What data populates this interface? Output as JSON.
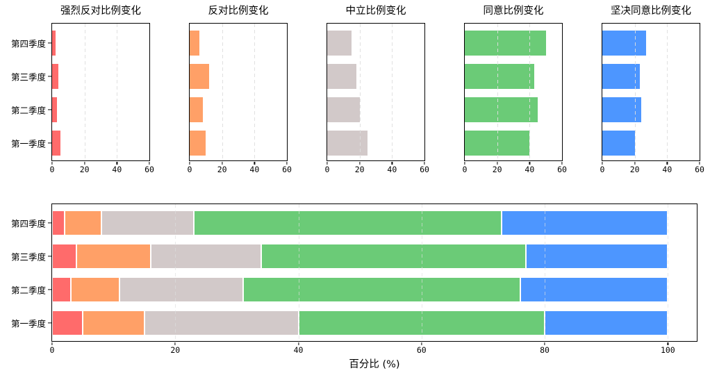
{
  "figure": {
    "background_color": "#ffffff",
    "axis_color": "#000000",
    "grid_style": "dashed vertical gridlines"
  },
  "categories": [
    "第一季度",
    "第二季度",
    "第三季度",
    "第四季度"
  ],
  "y_axis_order_top_to_bottom": [
    "第四季度",
    "第三季度",
    "第二季度",
    "第一季度"
  ],
  "chart_data": [
    {
      "type": "bar",
      "orientation": "horizontal",
      "title": "强烈反对比例变化",
      "series_name": "强烈反对",
      "categories": [
        "第一季度",
        "第二季度",
        "第三季度",
        "第四季度"
      ],
      "values": [
        5,
        3,
        4,
        2
      ],
      "color": "#FF6B6B",
      "xlim": [
        0,
        60
      ],
      "xticks": [
        0,
        20,
        40,
        60
      ],
      "y_labels_shown": true,
      "legend": "none"
    },
    {
      "type": "bar",
      "orientation": "horizontal",
      "title": "反对比例变化",
      "series_name": "反对",
      "categories": [
        "第一季度",
        "第二季度",
        "第三季度",
        "第四季度"
      ],
      "values": [
        10,
        8,
        12,
        6
      ],
      "color": "#FFA067",
      "xlim": [
        0,
        60
      ],
      "xticks": [
        0,
        20,
        40,
        60
      ],
      "y_labels_shown": false,
      "legend": "none"
    },
    {
      "type": "bar",
      "orientation": "horizontal",
      "title": "中立比例变化",
      "series_name": "中立",
      "categories": [
        "第一季度",
        "第二季度",
        "第三季度",
        "第四季度"
      ],
      "values": [
        25,
        20,
        18,
        15
      ],
      "color": "#D2C9C9",
      "xlim": [
        0,
        60
      ],
      "xticks": [
        0,
        20,
        40,
        60
      ],
      "y_labels_shown": false,
      "legend": "none"
    },
    {
      "type": "bar",
      "orientation": "horizontal",
      "title": "同意比例变化",
      "series_name": "同意",
      "categories": [
        "第一季度",
        "第二季度",
        "第三季度",
        "第四季度"
      ],
      "values": [
        40,
        45,
        43,
        50
      ],
      "color": "#6BCB77",
      "xlim": [
        0,
        60
      ],
      "xticks": [
        0,
        20,
        40,
        60
      ],
      "y_labels_shown": false,
      "legend": "none"
    },
    {
      "type": "bar",
      "orientation": "horizontal",
      "title": "坚决同意比例变化",
      "series_name": "坚决同意",
      "categories": [
        "第一季度",
        "第二季度",
        "第三季度",
        "第四季度"
      ],
      "values": [
        20,
        24,
        23,
        27
      ],
      "color": "#4D96FF",
      "xlim": [
        0,
        60
      ],
      "xticks": [
        0,
        20,
        40,
        60
      ],
      "y_labels_shown": false,
      "legend": "none"
    },
    {
      "type": "bar",
      "stacked": true,
      "orientation": "horizontal",
      "title": "",
      "xlabel": "百分比 (%)",
      "categories": [
        "第一季度",
        "第二季度",
        "第三季度",
        "第四季度"
      ],
      "series": [
        {
          "name": "强烈反对",
          "color": "#FF6B6B",
          "values": [
            5,
            3,
            4,
            2
          ]
        },
        {
          "name": "反对",
          "color": "#FFA067",
          "values": [
            10,
            8,
            12,
            6
          ]
        },
        {
          "name": "中立",
          "color": "#D2C9C9",
          "values": [
            25,
            20,
            18,
            15
          ]
        },
        {
          "name": "同意",
          "color": "#6BCB77",
          "values": [
            40,
            45,
            43,
            50
          ]
        },
        {
          "name": "坚决同意",
          "color": "#4D96FF",
          "values": [
            20,
            24,
            23,
            27
          ]
        }
      ],
      "row_totals": [
        100,
        100,
        100,
        100
      ],
      "xlim": [
        0,
        104.7
      ],
      "xticks": [
        0,
        20,
        40,
        60,
        80,
        100
      ],
      "y_labels_shown": true,
      "legend": "none"
    }
  ]
}
